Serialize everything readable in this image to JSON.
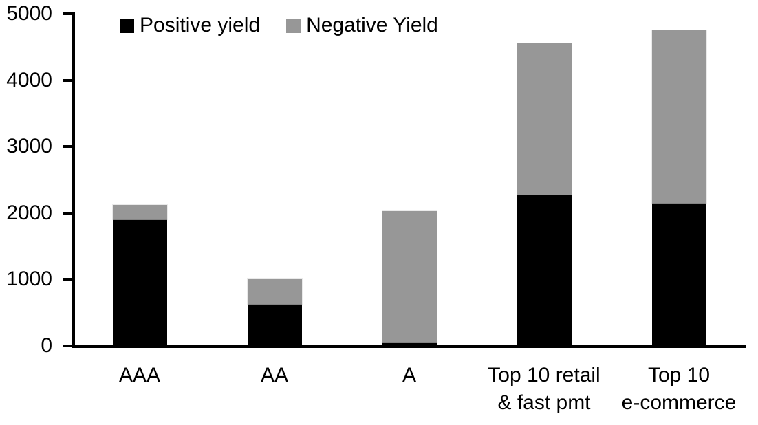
{
  "chart_data": {
    "type": "bar",
    "stacked": true,
    "title": "",
    "xlabel": "",
    "ylabel": "",
    "categories": [
      "AAA",
      "AA",
      "A",
      "Top 10 retail\n& fast pmt",
      "Top 10\ne-commerce"
    ],
    "series": [
      {
        "name": "Positive yield",
        "color": "#000000",
        "values": [
          1900,
          630,
          50,
          2280,
          2150
        ]
      },
      {
        "name": "Negative Yield",
        "color": "#979797",
        "values": [
          225,
          380,
          1980,
          2270,
          2600
        ]
      }
    ],
    "totals": [
      2125,
      1010,
      2030,
      4550,
      4750
    ],
    "ylim": [
      0,
      5000
    ],
    "yticks": [
      0,
      1000,
      2000,
      3000,
      4000,
      5000
    ],
    "ytick_labels": [
      "0",
      "1000",
      "2000",
      "3000",
      "4000",
      "5000"
    ],
    "grid": false,
    "legend_position": "top",
    "axis_color": "#000000",
    "background_color": "#ffffff"
  },
  "legend": {
    "items": [
      {
        "label": "Positive yield",
        "color": "#000000"
      },
      {
        "label": "Negative Yield",
        "color": "#979797"
      }
    ]
  }
}
